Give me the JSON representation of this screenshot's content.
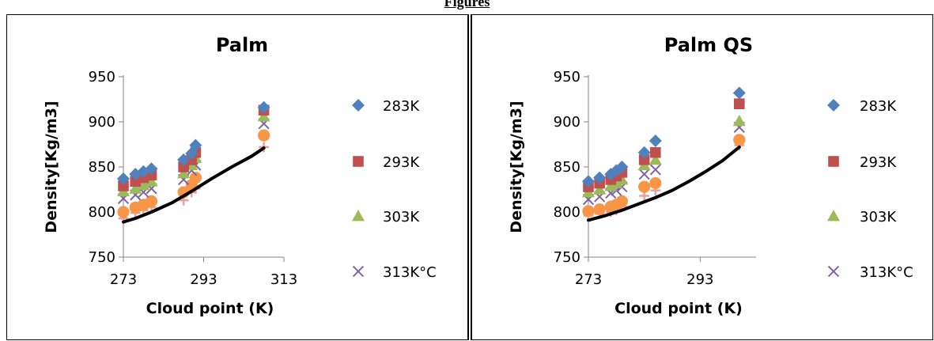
{
  "heading": "Figures",
  "chart_data": [
    {
      "type": "scatter",
      "title": "Palm",
      "xlabel": "Cloud point (K)",
      "ylabel": "Density[Kg/m3]",
      "xlim": [
        273,
        313
      ],
      "ylim": [
        750,
        950
      ],
      "xticks": [
        273,
        293,
        313
      ],
      "yticks": [
        750,
        800,
        850,
        900,
        950
      ],
      "legend_position": "right",
      "grid": false,
      "x": [
        273,
        276,
        278,
        280,
        288,
        290,
        291,
        308
      ],
      "series": [
        {
          "name": "283K",
          "marker": "diamond",
          "color": "#4F81BD",
          "values": [
            837,
            842,
            845,
            848,
            858,
            865,
            874,
            916
          ]
        },
        {
          "name": "293K",
          "marker": "square",
          "color": "#C0504D",
          "values": [
            829,
            834,
            838,
            841,
            850,
            858,
            866,
            913
          ]
        },
        {
          "name": "303K",
          "marker": "triangle",
          "color": "#9BBB59",
          "values": [
            823,
            826,
            830,
            834,
            843,
            852,
            860,
            906
          ]
        },
        {
          "name": "313K°C",
          "marker": "x",
          "color": "#8064A2",
          "values": [
            815,
            819,
            822,
            826,
            836,
            846,
            852,
            898
          ]
        },
        {
          "name": "",
          "marker": "circle",
          "color": "#F79646",
          "values": [
            800,
            805,
            808,
            812,
            822,
            830,
            838,
            885
          ]
        },
        {
          "name": "",
          "marker": "plus",
          "color": "#E6A0A0",
          "values": [
            793,
            799,
            802,
            805,
            813,
            822,
            826,
            872
          ]
        }
      ],
      "trendline": {
        "color": "#000000",
        "x": [
          273,
          276,
          280,
          285,
          290,
          295,
          300,
          305,
          308
        ],
        "values": [
          789,
          793,
          800,
          810,
          823,
          837,
          850,
          862,
          871
        ]
      }
    },
    {
      "type": "scatter",
      "title": "Palm QS",
      "xlabel": "Cloud point (K)",
      "ylabel": "Density[Kg/m3]",
      "xlim": [
        273,
        303
      ],
      "ylim": [
        750,
        950
      ],
      "xticks": [
        273,
        293
      ],
      "yticks": [
        750,
        800,
        850,
        900,
        950
      ],
      "legend_position": "right",
      "grid": false,
      "x": [
        273,
        275,
        277,
        278,
        279,
        283,
        285,
        300
      ],
      "series": [
        {
          "name": "283K",
          "marker": "diamond",
          "color": "#4F81BD",
          "values": [
            834,
            838,
            842,
            846,
            850,
            866,
            879,
            932
          ]
        },
        {
          "name": "293K",
          "marker": "square",
          "color": "#C0504D",
          "values": [
            828,
            832,
            836,
            840,
            844,
            858,
            866,
            920
          ]
        },
        {
          "name": "303K",
          "marker": "triangle",
          "color": "#9BBB59",
          "values": [
            822,
            825,
            829,
            832,
            836,
            852,
            858,
            901
          ]
        },
        {
          "name": "313K°C",
          "marker": "x",
          "color": "#8064A2",
          "values": [
            814,
            817,
            821,
            824,
            828,
            842,
            847,
            894
          ]
        },
        {
          "name": "",
          "marker": "circle",
          "color": "#F79646",
          "values": [
            801,
            803,
            806,
            808,
            812,
            828,
            832,
            880
          ]
        },
        {
          "name": "",
          "marker": "plus",
          "color": "#E6A0A0",
          "values": [
            796,
            798,
            800,
            802,
            806,
            818,
            824,
            874
          ]
        }
      ],
      "trendline": {
        "color": "#000000",
        "x": [
          273,
          276,
          279,
          282,
          285,
          288,
          291,
          294,
          297,
          300
        ],
        "values": [
          791,
          796,
          802,
          809,
          816,
          824,
          834,
          845,
          857,
          872
        ]
      }
    }
  ]
}
